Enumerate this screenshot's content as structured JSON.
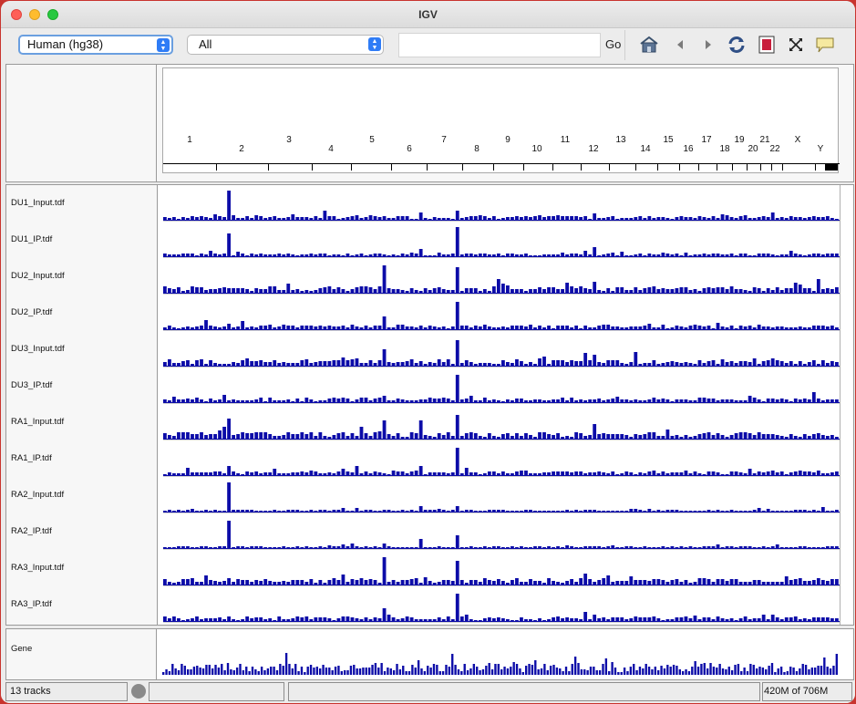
{
  "window": {
    "title": "IGV"
  },
  "toolbar": {
    "genome": "Human (hg38)",
    "chromosome": "All",
    "locus_value": "",
    "go_label": "Go",
    "icons": [
      "home-icon",
      "back-icon",
      "forward-icon",
      "refresh-icon",
      "region-of-interest-icon",
      "resize-to-window-icon",
      "popup-info-icon"
    ]
  },
  "ruler": {
    "chromosomes": [
      "1",
      "2",
      "3",
      "4",
      "5",
      "6",
      "7",
      "8",
      "9",
      "10",
      "11",
      "12",
      "13",
      "14",
      "15",
      "16",
      "17",
      "18",
      "19",
      "20",
      "21",
      "22",
      "X",
      "Y"
    ]
  },
  "tracks": [
    {
      "name": "DU1_Input.tdf",
      "baseline": 4,
      "peaks": {
        "9": 32,
        "38": 8,
        "43": 10
      }
    },
    {
      "name": "DU1_IP.tdf",
      "baseline": 3,
      "peaks": {
        "9": 25,
        "38": 8,
        "43": 32,
        "64": 10
      }
    },
    {
      "name": "DU2_Input.tdf",
      "baseline": 6,
      "peaks": {
        "32": 30,
        "43": 28,
        "50": 10,
        "63": 10,
        "64": 12
      }
    },
    {
      "name": "DU2_IP.tdf",
      "baseline": 4,
      "peaks": {
        "32": 14,
        "43": 30,
        "63": 8
      }
    },
    {
      "name": "DU3_Input.tdf",
      "baseline": 6,
      "peaks": {
        "32": 18,
        "43": 28,
        "62": 14,
        "63": 12,
        "64": 12
      }
    },
    {
      "name": "DU3_IP.tdf",
      "baseline": 4,
      "peaks": {
        "43": 30,
        "63": 10
      }
    },
    {
      "name": "RA1_Input.tdf",
      "baseline": 6,
      "peaks": {
        "9": 22,
        "32": 20,
        "38": 20,
        "43": 26,
        "64": 16
      }
    },
    {
      "name": "RA1_IP.tdf",
      "baseline": 4,
      "peaks": {
        "9": 10,
        "38": 10,
        "43": 30
      }
    },
    {
      "name": "RA2_Input.tdf",
      "baseline": 2,
      "peaks": {
        "9": 32,
        "38": 6,
        "43": 6
      }
    },
    {
      "name": "RA2_IP.tdf",
      "baseline": 2,
      "peaks": {
        "9": 30,
        "38": 10,
        "43": 14
      }
    },
    {
      "name": "RA3_Input.tdf",
      "baseline": 6,
      "peaks": {
        "32": 30,
        "43": 26,
        "62": 12,
        "63": 12
      }
    },
    {
      "name": "RA3_IP.tdf",
      "baseline": 4,
      "peaks": {
        "32": 14,
        "43": 30,
        "62": 10
      }
    }
  ],
  "gene_track": {
    "name": "Gene"
  },
  "status": {
    "tracks_count": "13 tracks",
    "memory": "420M of 706M"
  },
  "colors": {
    "track_bar": "#0c0ca8",
    "title_red": "#fe5f57",
    "title_yellow": "#febc2e",
    "title_green": "#28c840",
    "stepper_blue": "#2f7cf6"
  }
}
